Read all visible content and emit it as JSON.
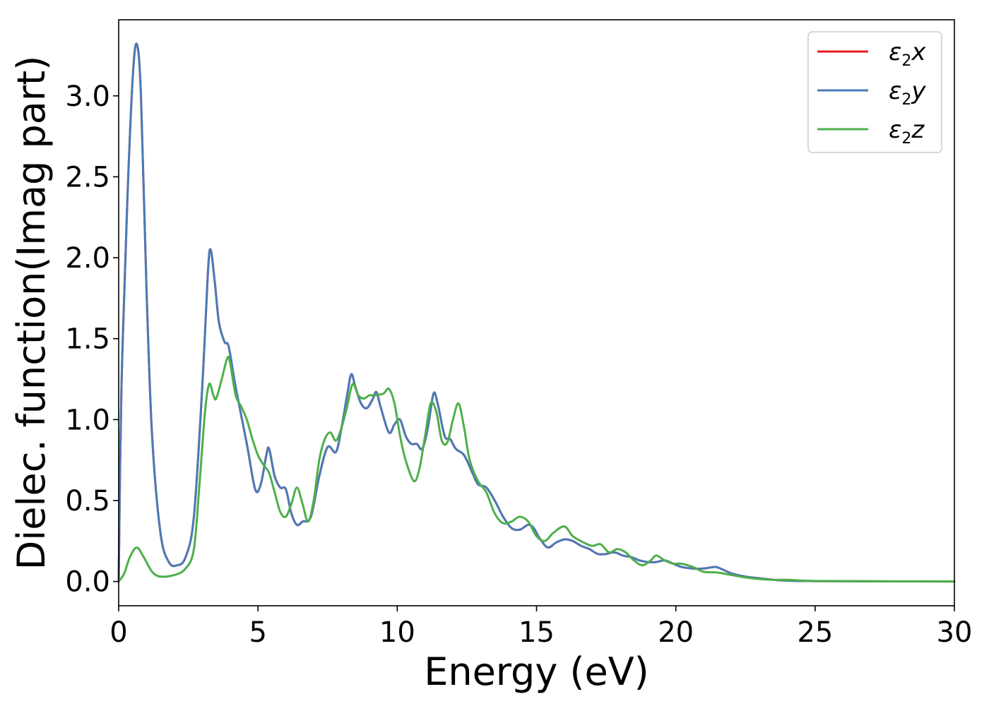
{
  "chart_data": {
    "type": "line",
    "title": "",
    "xlabel": "Energy (eV)",
    "ylabel": "Dielec. function(Imag part)",
    "xlim": [
      0,
      30
    ],
    "ylim": [
      -0.15,
      3.47
    ],
    "xticks": [
      0,
      5,
      10,
      15,
      20,
      25,
      30
    ],
    "xtick_labels": [
      "0",
      "5",
      "10",
      "15",
      "20",
      "25",
      "30"
    ],
    "yticks": [
      0.0,
      0.5,
      1.0,
      1.5,
      2.0,
      2.5,
      3.0
    ],
    "ytick_labels": [
      "0.0",
      "0.5",
      "1.0",
      "1.5",
      "2.0",
      "2.5",
      "3.0"
    ],
    "grid": false,
    "legend_position": "top-right",
    "series": [
      {
        "name": "ε2x",
        "symbol": "ε",
        "sub": "2",
        "axis": "x",
        "color": "#e41a1c",
        "points": [
          [
            0,
            0
          ],
          [
            0.1,
            1.2
          ],
          [
            0.3,
            2.3
          ],
          [
            0.5,
            3.1
          ],
          [
            0.65,
            3.32
          ],
          [
            0.8,
            3.0
          ],
          [
            1.0,
            1.8
          ],
          [
            1.2,
            0.9
          ],
          [
            1.5,
            0.3
          ],
          [
            1.8,
            0.12
          ],
          [
            2.1,
            0.1
          ],
          [
            2.4,
            0.15
          ],
          [
            2.7,
            0.4
          ],
          [
            3.0,
            1.2
          ],
          [
            3.2,
            1.9
          ],
          [
            3.3,
            2.05
          ],
          [
            3.45,
            1.85
          ],
          [
            3.6,
            1.6
          ],
          [
            3.8,
            1.48
          ],
          [
            3.95,
            1.45
          ],
          [
            4.2,
            1.2
          ],
          [
            4.6,
            0.85
          ],
          [
            4.9,
            0.57
          ],
          [
            5.1,
            0.6
          ],
          [
            5.3,
            0.78
          ],
          [
            5.4,
            0.82
          ],
          [
            5.6,
            0.65
          ],
          [
            5.8,
            0.58
          ],
          [
            6.0,
            0.57
          ],
          [
            6.2,
            0.42
          ],
          [
            6.4,
            0.35
          ],
          [
            6.6,
            0.37
          ],
          [
            6.9,
            0.4
          ],
          [
            7.2,
            0.65
          ],
          [
            7.5,
            0.83
          ],
          [
            7.8,
            0.8
          ],
          [
            8.0,
            0.95
          ],
          [
            8.2,
            1.15
          ],
          [
            8.35,
            1.28
          ],
          [
            8.5,
            1.2
          ],
          [
            8.7,
            1.1
          ],
          [
            8.9,
            1.07
          ],
          [
            9.1,
            1.12
          ],
          [
            9.25,
            1.17
          ],
          [
            9.4,
            1.08
          ],
          [
            9.7,
            0.92
          ],
          [
            9.9,
            0.97
          ],
          [
            10.1,
            1.0
          ],
          [
            10.3,
            0.9
          ],
          [
            10.5,
            0.85
          ],
          [
            10.7,
            0.85
          ],
          [
            10.9,
            0.82
          ],
          [
            11.1,
            0.95
          ],
          [
            11.3,
            1.16
          ],
          [
            11.45,
            1.1
          ],
          [
            11.7,
            0.9
          ],
          [
            11.9,
            0.88
          ],
          [
            12.1,
            0.82
          ],
          [
            12.4,
            0.78
          ],
          [
            12.7,
            0.67
          ],
          [
            12.9,
            0.6
          ],
          [
            13.2,
            0.58
          ],
          [
            13.5,
            0.5
          ],
          [
            13.8,
            0.4
          ],
          [
            14.1,
            0.33
          ],
          [
            14.4,
            0.32
          ],
          [
            14.7,
            0.35
          ],
          [
            14.9,
            0.33
          ],
          [
            15.1,
            0.27
          ],
          [
            15.4,
            0.21
          ],
          [
            15.7,
            0.24
          ],
          [
            16.0,
            0.26
          ],
          [
            16.3,
            0.25
          ],
          [
            16.6,
            0.22
          ],
          [
            16.9,
            0.2
          ],
          [
            17.2,
            0.17
          ],
          [
            17.5,
            0.17
          ],
          [
            17.8,
            0.18
          ],
          [
            18.1,
            0.16
          ],
          [
            18.4,
            0.15
          ],
          [
            18.7,
            0.13
          ],
          [
            19.0,
            0.12
          ],
          [
            19.3,
            0.12
          ],
          [
            19.6,
            0.13
          ],
          [
            19.9,
            0.11
          ],
          [
            20.2,
            0.09
          ],
          [
            20.6,
            0.08
          ],
          [
            21.0,
            0.08
          ],
          [
            21.4,
            0.09
          ],
          [
            21.6,
            0.08
          ],
          [
            22.0,
            0.05
          ],
          [
            22.5,
            0.03
          ],
          [
            23.0,
            0.02
          ],
          [
            23.5,
            0.01
          ],
          [
            24.0,
            0.005
          ],
          [
            25.0,
            0.002
          ],
          [
            27.0,
            0.001
          ],
          [
            30.0,
            0.0
          ]
        ]
      },
      {
        "name": "ε2y",
        "symbol": "ε",
        "sub": "2",
        "axis": "y",
        "color": "#4a7bb7",
        "points": [
          [
            0,
            0
          ],
          [
            0.1,
            1.2
          ],
          [
            0.3,
            2.3
          ],
          [
            0.5,
            3.1
          ],
          [
            0.65,
            3.32
          ],
          [
            0.8,
            3.0
          ],
          [
            1.0,
            1.8
          ],
          [
            1.2,
            0.9
          ],
          [
            1.5,
            0.3
          ],
          [
            1.8,
            0.12
          ],
          [
            2.1,
            0.1
          ],
          [
            2.4,
            0.15
          ],
          [
            2.7,
            0.4
          ],
          [
            3.0,
            1.2
          ],
          [
            3.2,
            1.9
          ],
          [
            3.3,
            2.05
          ],
          [
            3.45,
            1.85
          ],
          [
            3.6,
            1.6
          ],
          [
            3.8,
            1.48
          ],
          [
            3.95,
            1.45
          ],
          [
            4.2,
            1.2
          ],
          [
            4.6,
            0.85
          ],
          [
            4.9,
            0.57
          ],
          [
            5.1,
            0.6
          ],
          [
            5.3,
            0.78
          ],
          [
            5.4,
            0.82
          ],
          [
            5.6,
            0.65
          ],
          [
            5.8,
            0.58
          ],
          [
            6.0,
            0.57
          ],
          [
            6.2,
            0.42
          ],
          [
            6.4,
            0.35
          ],
          [
            6.6,
            0.37
          ],
          [
            6.9,
            0.4
          ],
          [
            7.2,
            0.65
          ],
          [
            7.5,
            0.83
          ],
          [
            7.8,
            0.8
          ],
          [
            8.0,
            0.95
          ],
          [
            8.2,
            1.15
          ],
          [
            8.35,
            1.28
          ],
          [
            8.5,
            1.2
          ],
          [
            8.7,
            1.1
          ],
          [
            8.9,
            1.07
          ],
          [
            9.1,
            1.12
          ],
          [
            9.25,
            1.17
          ],
          [
            9.4,
            1.08
          ],
          [
            9.7,
            0.92
          ],
          [
            9.9,
            0.97
          ],
          [
            10.1,
            1.0
          ],
          [
            10.3,
            0.9
          ],
          [
            10.5,
            0.85
          ],
          [
            10.7,
            0.85
          ],
          [
            10.9,
            0.82
          ],
          [
            11.1,
            0.95
          ],
          [
            11.3,
            1.16
          ],
          [
            11.45,
            1.1
          ],
          [
            11.7,
            0.9
          ],
          [
            11.9,
            0.88
          ],
          [
            12.1,
            0.82
          ],
          [
            12.4,
            0.78
          ],
          [
            12.7,
            0.67
          ],
          [
            12.9,
            0.6
          ],
          [
            13.2,
            0.58
          ],
          [
            13.5,
            0.5
          ],
          [
            13.8,
            0.4
          ],
          [
            14.1,
            0.33
          ],
          [
            14.4,
            0.32
          ],
          [
            14.7,
            0.35
          ],
          [
            14.9,
            0.33
          ],
          [
            15.1,
            0.27
          ],
          [
            15.4,
            0.21
          ],
          [
            15.7,
            0.24
          ],
          [
            16.0,
            0.26
          ],
          [
            16.3,
            0.25
          ],
          [
            16.6,
            0.22
          ],
          [
            16.9,
            0.2
          ],
          [
            17.2,
            0.17
          ],
          [
            17.5,
            0.17
          ],
          [
            17.8,
            0.18
          ],
          [
            18.1,
            0.16
          ],
          [
            18.4,
            0.15
          ],
          [
            18.7,
            0.13
          ],
          [
            19.0,
            0.12
          ],
          [
            19.3,
            0.12
          ],
          [
            19.6,
            0.13
          ],
          [
            19.9,
            0.11
          ],
          [
            20.2,
            0.09
          ],
          [
            20.6,
            0.08
          ],
          [
            21.0,
            0.08
          ],
          [
            21.4,
            0.09
          ],
          [
            21.6,
            0.08
          ],
          [
            22.0,
            0.05
          ],
          [
            22.5,
            0.03
          ],
          [
            23.0,
            0.02
          ],
          [
            23.5,
            0.01
          ],
          [
            24.0,
            0.005
          ],
          [
            25.0,
            0.002
          ],
          [
            27.0,
            0.001
          ],
          [
            30.0,
            0.0
          ]
        ]
      },
      {
        "name": "ε2z",
        "symbol": "ε",
        "sub": "2",
        "axis": "z",
        "color": "#4daf4a",
        "points": [
          [
            0,
            0
          ],
          [
            0.2,
            0.05
          ],
          [
            0.4,
            0.15
          ],
          [
            0.65,
            0.21
          ],
          [
            0.9,
            0.15
          ],
          [
            1.2,
            0.06
          ],
          [
            1.5,
            0.03
          ],
          [
            2.0,
            0.04
          ],
          [
            2.4,
            0.08
          ],
          [
            2.7,
            0.2
          ],
          [
            2.9,
            0.6
          ],
          [
            3.1,
            1.05
          ],
          [
            3.25,
            1.22
          ],
          [
            3.4,
            1.15
          ],
          [
            3.5,
            1.13
          ],
          [
            3.7,
            1.25
          ],
          [
            3.9,
            1.38
          ],
          [
            4.0,
            1.35
          ],
          [
            4.2,
            1.15
          ],
          [
            4.4,
            1.08
          ],
          [
            4.6,
            1.0
          ],
          [
            4.8,
            0.88
          ],
          [
            5.0,
            0.78
          ],
          [
            5.2,
            0.72
          ],
          [
            5.4,
            0.67
          ],
          [
            5.6,
            0.55
          ],
          [
            5.8,
            0.43
          ],
          [
            6.0,
            0.4
          ],
          [
            6.2,
            0.48
          ],
          [
            6.4,
            0.58
          ],
          [
            6.6,
            0.48
          ],
          [
            6.8,
            0.37
          ],
          [
            7.0,
            0.5
          ],
          [
            7.2,
            0.75
          ],
          [
            7.4,
            0.88
          ],
          [
            7.6,
            0.92
          ],
          [
            7.8,
            0.87
          ],
          [
            8.0,
            0.95
          ],
          [
            8.2,
            1.08
          ],
          [
            8.4,
            1.22
          ],
          [
            8.6,
            1.15
          ],
          [
            8.8,
            1.13
          ],
          [
            9.0,
            1.15
          ],
          [
            9.2,
            1.15
          ],
          [
            9.5,
            1.16
          ],
          [
            9.7,
            1.19
          ],
          [
            9.9,
            1.1
          ],
          [
            10.1,
            0.9
          ],
          [
            10.3,
            0.75
          ],
          [
            10.6,
            0.62
          ],
          [
            10.8,
            0.7
          ],
          [
            11.0,
            0.9
          ],
          [
            11.2,
            1.1
          ],
          [
            11.4,
            1.05
          ],
          [
            11.6,
            0.87
          ],
          [
            11.8,
            0.86
          ],
          [
            12.0,
            1.0
          ],
          [
            12.2,
            1.1
          ],
          [
            12.4,
            0.95
          ],
          [
            12.6,
            0.75
          ],
          [
            12.9,
            0.62
          ],
          [
            13.2,
            0.55
          ],
          [
            13.5,
            0.42
          ],
          [
            13.8,
            0.36
          ],
          [
            14.1,
            0.37
          ],
          [
            14.4,
            0.4
          ],
          [
            14.7,
            0.37
          ],
          [
            15.0,
            0.28
          ],
          [
            15.3,
            0.25
          ],
          [
            15.6,
            0.3
          ],
          [
            16.0,
            0.34
          ],
          [
            16.3,
            0.28
          ],
          [
            16.7,
            0.24
          ],
          [
            17.0,
            0.22
          ],
          [
            17.3,
            0.23
          ],
          [
            17.6,
            0.18
          ],
          [
            17.9,
            0.2
          ],
          [
            18.2,
            0.18
          ],
          [
            18.5,
            0.13
          ],
          [
            18.8,
            0.1
          ],
          [
            19.1,
            0.13
          ],
          [
            19.3,
            0.16
          ],
          [
            19.6,
            0.13
          ],
          [
            19.9,
            0.11
          ],
          [
            20.2,
            0.11
          ],
          [
            20.6,
            0.09
          ],
          [
            21.0,
            0.06
          ],
          [
            21.5,
            0.055
          ],
          [
            22.0,
            0.04
          ],
          [
            22.5,
            0.025
          ],
          [
            23.0,
            0.015
          ],
          [
            23.5,
            0.01
          ],
          [
            24.0,
            0.01
          ],
          [
            25.0,
            0.003
          ],
          [
            27.0,
            0.001
          ],
          [
            30.0,
            0.0
          ]
        ]
      }
    ]
  }
}
